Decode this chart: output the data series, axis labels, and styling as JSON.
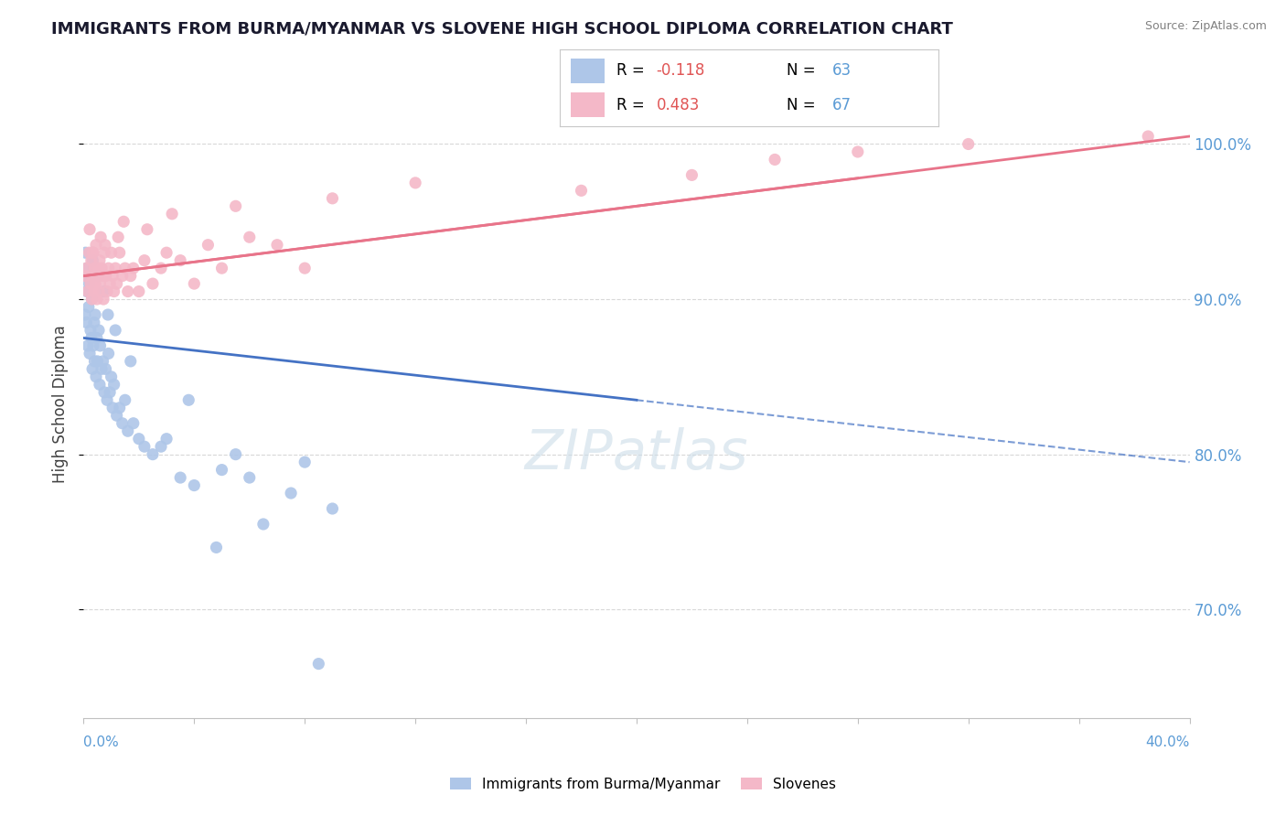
{
  "title": "IMMIGRANTS FROM BURMA/MYANMAR VS SLOVENE HIGH SCHOOL DIPLOMA CORRELATION CHART",
  "source": "Source: ZipAtlas.com",
  "ylabel": "High School Diploma",
  "xmin": 0.0,
  "xmax": 40.0,
  "ymin": 63.0,
  "ymax": 103.5,
  "right_yticks": [
    70.0,
    80.0,
    90.0,
    100.0
  ],
  "right_ytick_labels": [
    "70.0%",
    "80.0%",
    "90.0%",
    "100.0%"
  ],
  "legend_bottom_entries": [
    {
      "label": "Immigrants from Burma/Myanmar",
      "color": "#aec6e8"
    },
    {
      "label": "Slovenes",
      "color": "#f4b8c8"
    }
  ],
  "blue_r": -0.118,
  "blue_n": 63,
  "pink_r": 0.483,
  "pink_n": 67,
  "blue_line_x0": 0.0,
  "blue_line_y0": 87.5,
  "blue_line_x1": 20.0,
  "blue_line_y1": 83.5,
  "blue_line_solid_end": 20.0,
  "blue_line_dash_end": 40.0,
  "pink_line_x0": 0.0,
  "pink_line_y0": 91.5,
  "pink_line_x1": 40.0,
  "pink_line_y1": 100.5,
  "pink_line_solid_end": 28.0,
  "blue_line_color": "#4472c4",
  "pink_line_color": "#e8748a",
  "blue_dot_color": "#aec6e8",
  "pink_dot_color": "#f4b8c8",
  "watermark": "ZIPatlas",
  "watermark_color": "#ccdde8",
  "blue_scatter_x": [
    0.05,
    0.08,
    0.1,
    0.12,
    0.15,
    0.18,
    0.2,
    0.22,
    0.25,
    0.28,
    0.3,
    0.32,
    0.35,
    0.38,
    0.4,
    0.42,
    0.45,
    0.48,
    0.5,
    0.55,
    0.58,
    0.6,
    0.65,
    0.7,
    0.75,
    0.8,
    0.85,
    0.9,
    0.95,
    1.0,
    1.05,
    1.1,
    1.2,
    1.3,
    1.4,
    1.5,
    1.6,
    1.8,
    2.0,
    2.2,
    2.5,
    2.8,
    3.0,
    3.5,
    4.0,
    5.0,
    6.0,
    7.5,
    8.0,
    9.0,
    0.07,
    0.13,
    0.33,
    0.52,
    0.72,
    0.88,
    1.15,
    1.7,
    3.8,
    5.5,
    4.8,
    6.5,
    8.5
  ],
  "blue_scatter_y": [
    89.0,
    91.5,
    88.5,
    90.5,
    87.0,
    89.5,
    91.0,
    86.5,
    88.0,
    87.5,
    90.0,
    85.5,
    87.0,
    88.5,
    86.0,
    89.0,
    85.0,
    87.5,
    86.0,
    88.0,
    84.5,
    87.0,
    85.5,
    86.0,
    84.0,
    85.5,
    83.5,
    86.5,
    84.0,
    85.0,
    83.0,
    84.5,
    82.5,
    83.0,
    82.0,
    83.5,
    81.5,
    82.0,
    81.0,
    80.5,
    80.0,
    80.5,
    81.0,
    78.5,
    78.0,
    79.0,
    78.5,
    77.5,
    79.5,
    76.5,
    93.0,
    92.0,
    92.5,
    91.5,
    90.5,
    89.0,
    88.0,
    86.0,
    83.5,
    80.0,
    74.0,
    75.5,
    66.5
  ],
  "pink_scatter_x": [
    0.05,
    0.1,
    0.15,
    0.2,
    0.25,
    0.28,
    0.3,
    0.32,
    0.35,
    0.38,
    0.4,
    0.42,
    0.45,
    0.48,
    0.5,
    0.52,
    0.55,
    0.58,
    0.6,
    0.65,
    0.7,
    0.72,
    0.75,
    0.8,
    0.85,
    0.9,
    0.95,
    1.0,
    1.05,
    1.1,
    1.15,
    1.2,
    1.3,
    1.4,
    1.5,
    1.6,
    1.7,
    1.8,
    2.0,
    2.2,
    2.5,
    2.8,
    3.0,
    3.5,
    4.0,
    4.5,
    5.0,
    6.0,
    7.0,
    8.0,
    0.22,
    0.33,
    0.62,
    0.78,
    1.25,
    1.45,
    2.3,
    3.2,
    5.5,
    9.0,
    12.0,
    18.0,
    22.0,
    25.0,
    28.0,
    32.0,
    38.5
  ],
  "pink_scatter_y": [
    91.5,
    92.0,
    90.5,
    93.0,
    91.0,
    92.5,
    90.0,
    91.5,
    93.0,
    90.5,
    92.0,
    91.0,
    93.5,
    90.0,
    91.5,
    92.0,
    90.5,
    92.5,
    91.0,
    92.0,
    91.5,
    90.0,
    93.0,
    91.5,
    90.5,
    92.0,
    91.0,
    93.0,
    91.5,
    90.5,
    92.0,
    91.0,
    93.0,
    91.5,
    92.0,
    90.5,
    91.5,
    92.0,
    90.5,
    92.5,
    91.0,
    92.0,
    93.0,
    92.5,
    91.0,
    93.5,
    92.0,
    94.0,
    93.5,
    92.0,
    94.5,
    93.0,
    94.0,
    93.5,
    94.0,
    95.0,
    94.5,
    95.5,
    96.0,
    96.5,
    97.5,
    97.0,
    98.0,
    99.0,
    99.5,
    100.0,
    100.5
  ]
}
